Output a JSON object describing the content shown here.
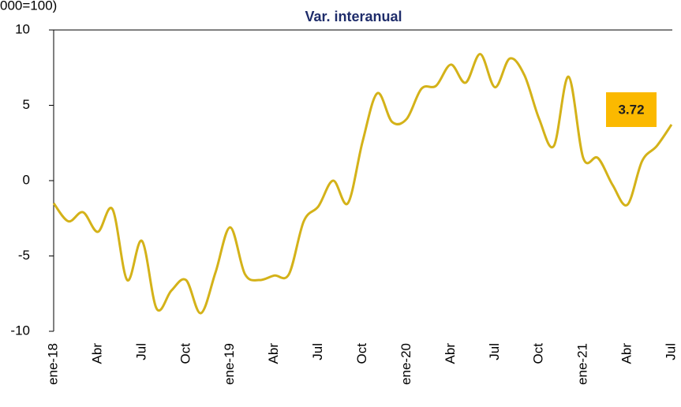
{
  "chart_data": {
    "type": "line",
    "title": "Var. interanual",
    "subtitle": "000=100)",
    "categories": [
      "ene-18",
      null,
      null,
      "Abr",
      null,
      null,
      "Jul",
      null,
      null,
      "Oct",
      null,
      null,
      "ene-19",
      null,
      null,
      "Abr",
      null,
      null,
      "Jul",
      null,
      null,
      "Oct",
      null,
      null,
      "ene-20",
      null,
      null,
      "Abr",
      null,
      null,
      "Jul",
      null,
      null,
      "Oct",
      null,
      null,
      "ene-21",
      null,
      null,
      "Abr",
      null,
      null,
      "Jul"
    ],
    "series": [
      {
        "name": "Var. interanual",
        "color": "#d4b219",
        "values": [
          -1.5,
          -2.7,
          -2.1,
          -3.4,
          -1.9,
          -6.6,
          -4.0,
          -8.5,
          -7.3,
          -6.6,
          -8.8,
          -6.1,
          -3.1,
          -6.2,
          -6.6,
          -6.3,
          -6.2,
          -2.7,
          -1.7,
          0.0,
          -1.5,
          2.6,
          5.8,
          3.9,
          4.1,
          6.1,
          6.3,
          7.7,
          6.5,
          8.4,
          6.2,
          8.1,
          7.0,
          4.1,
          2.3,
          6.9,
          1.5,
          1.5,
          -0.3,
          -1.6,
          1.3,
          2.3,
          3.72
        ]
      }
    ],
    "ylim": [
      -10,
      10
    ],
    "yticks": [
      -10,
      -5,
      0,
      5,
      10
    ],
    "label_color": "#fbb900"
  }
}
